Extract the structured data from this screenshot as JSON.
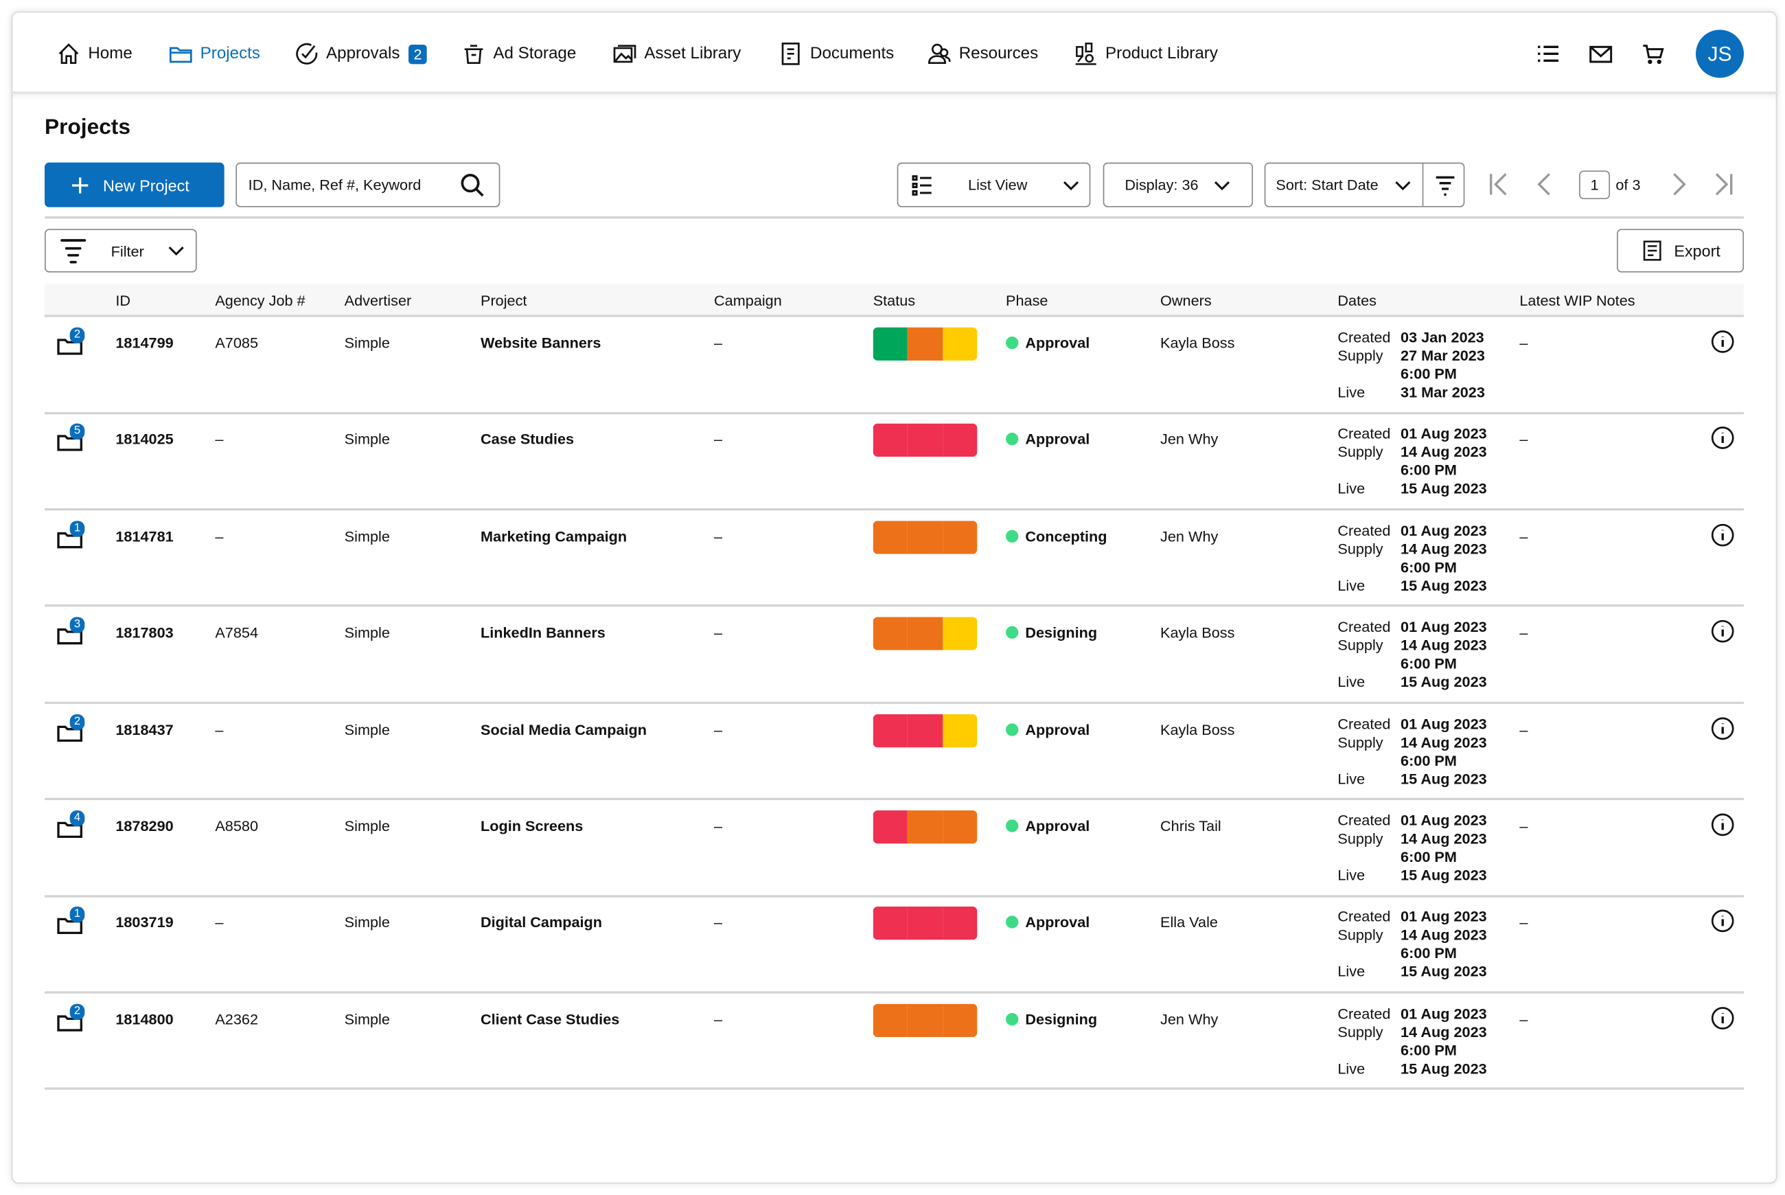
{
  "nav": {
    "items": [
      {
        "label": "Home",
        "icon": "home-icon"
      },
      {
        "label": "Projects",
        "icon": "folder-icon",
        "active": true
      },
      {
        "label": "Approvals",
        "icon": "check-circle-icon",
        "badge": "2"
      },
      {
        "label": "Ad Storage",
        "icon": "storage-icon"
      },
      {
        "label": "Asset Library",
        "icon": "image-icon"
      },
      {
        "label": "Documents",
        "icon": "document-icon"
      },
      {
        "label": "Resources",
        "icon": "people-icon"
      },
      {
        "label": "Product Library",
        "icon": "product-icon"
      }
    ],
    "avatar": "JS"
  },
  "page": {
    "title": "Projects"
  },
  "toolbar": {
    "new_project": "New Project",
    "search_placeholder": "ID, Name, Ref #, Keyword",
    "view": "List View",
    "display": "Display: 36",
    "sort": "Sort: Start Date",
    "page": "1",
    "of": "of 3",
    "filter": "Filter",
    "export": "Export"
  },
  "colors": {
    "accent": "#0a6ebd",
    "green": "#00a65a",
    "orange": "#ed7119",
    "yellow": "#ffcc00",
    "red": "#ef3050",
    "phase_dot": "#3ddc84"
  },
  "table": {
    "headers": [
      "ID",
      "Agency Job #",
      "Advertiser",
      "Project",
      "Campaign",
      "Status",
      "Phase",
      "Owners",
      "Dates",
      "Latest WIP Notes"
    ],
    "date_labels": [
      "Created",
      "Supply",
      "Live"
    ],
    "rows": [
      {
        "count": "2",
        "id": "1814799",
        "agency": "A7085",
        "advertiser": "Simple",
        "project": "Website Banners",
        "campaign": "–",
        "status": [
          "green",
          "orange",
          "yellow"
        ],
        "phase": "Approval",
        "owner": "Kayla Boss",
        "created": "03 Jan 2023",
        "supply": "27 Mar 2023",
        "supply_time": "6:00 PM",
        "live": "31 Mar 2023",
        "notes": "–"
      },
      {
        "count": "5",
        "id": "1814025",
        "agency": "–",
        "advertiser": "Simple",
        "project": "Case Studies",
        "campaign": "–",
        "status": [
          "red",
          "red",
          "red"
        ],
        "phase": "Approval",
        "owner": "Jen Why",
        "created": "01 Aug 2023",
        "supply": "14 Aug 2023",
        "supply_time": "6:00 PM",
        "live": "15 Aug 2023",
        "notes": "–"
      },
      {
        "count": "1",
        "id": "1814781",
        "agency": "–",
        "advertiser": "Simple",
        "project": "Marketing Campaign",
        "campaign": "–",
        "status": [
          "orange",
          "orange",
          "orange"
        ],
        "phase": "Concepting",
        "owner": "Jen Why",
        "created": "01 Aug 2023",
        "supply": "14 Aug 2023",
        "supply_time": "6:00 PM",
        "live": "15 Aug 2023",
        "notes": "–"
      },
      {
        "count": "3",
        "id": "1817803",
        "agency": "A7854",
        "advertiser": "Simple",
        "project": "LinkedIn Banners",
        "campaign": "–",
        "status": [
          "orange",
          "orange",
          "yellow"
        ],
        "phase": "Designing",
        "owner": "Kayla Boss",
        "created": "01 Aug 2023",
        "supply": "14 Aug 2023",
        "supply_time": "6:00 PM",
        "live": "15 Aug 2023",
        "notes": "–"
      },
      {
        "count": "2",
        "id": "1818437",
        "agency": "–",
        "advertiser": "Simple",
        "project": "Social Media Campaign",
        "campaign": "–",
        "status": [
          "red",
          "red",
          "yellow"
        ],
        "phase": "Approval",
        "owner": "Kayla Boss",
        "created": "01 Aug 2023",
        "supply": "14 Aug 2023",
        "supply_time": "6:00 PM",
        "live": "15 Aug 2023",
        "notes": "–"
      },
      {
        "count": "4",
        "id": "1878290",
        "agency": "A8580",
        "advertiser": "Simple",
        "project": "Login Screens",
        "campaign": "–",
        "status": [
          "red",
          "orange",
          "orange"
        ],
        "phase": "Approval",
        "owner": "Chris Tail",
        "created": "01 Aug 2023",
        "supply": "14 Aug 2023",
        "supply_time": "6:00 PM",
        "live": "15 Aug 2023",
        "notes": "–"
      },
      {
        "count": "1",
        "id": "1803719",
        "agency": "–",
        "advertiser": "Simple",
        "project": "Digital Campaign",
        "campaign": "–",
        "status": [
          "red",
          "red",
          "red"
        ],
        "phase": "Approval",
        "owner": "Ella Vale",
        "created": "01 Aug 2023",
        "supply": "14 Aug 2023",
        "supply_time": "6:00 PM",
        "live": "15 Aug 2023",
        "notes": "–"
      },
      {
        "count": "2",
        "id": "1814800",
        "agency": "A2362",
        "advertiser": "Simple",
        "project": "Client Case Studies",
        "campaign": "–",
        "status": [
          "orange",
          "orange",
          "orange"
        ],
        "phase": "Designing",
        "owner": "Jen Why",
        "created": "01 Aug 2023",
        "supply": "14 Aug 2023",
        "supply_time": "6:00 PM",
        "live": "15 Aug 2023",
        "notes": "–"
      }
    ]
  }
}
